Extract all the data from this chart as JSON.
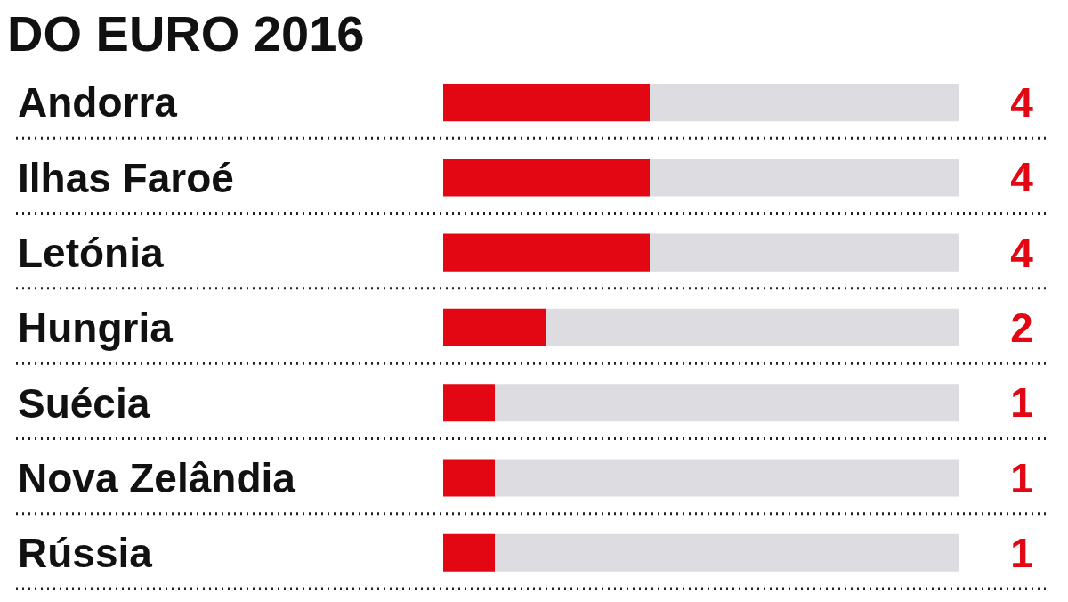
{
  "chart_data": {
    "type": "bar",
    "orientation": "horizontal",
    "stacked": true,
    "title": "DO EURO 2016",
    "tick_labels": "y",
    "xlim": [
      0,
      10
    ],
    "categories": [
      "Andorra",
      "Ilhas Faroé",
      "Letónia",
      "Hungria",
      "Suécia",
      "Nova Zelândia",
      "Rússia"
    ],
    "series": [
      {
        "color": "#e30613",
        "values": [
          4,
          4,
          4,
          2,
          1,
          1,
          1
        ],
        "value_labels": [
          "4",
          "4",
          "4",
          "2",
          "1",
          "1",
          "1"
        ]
      },
      {
        "color": "#dcdce1",
        "values": [
          6,
          6,
          6,
          8,
          9,
          9,
          9
        ]
      }
    ]
  }
}
